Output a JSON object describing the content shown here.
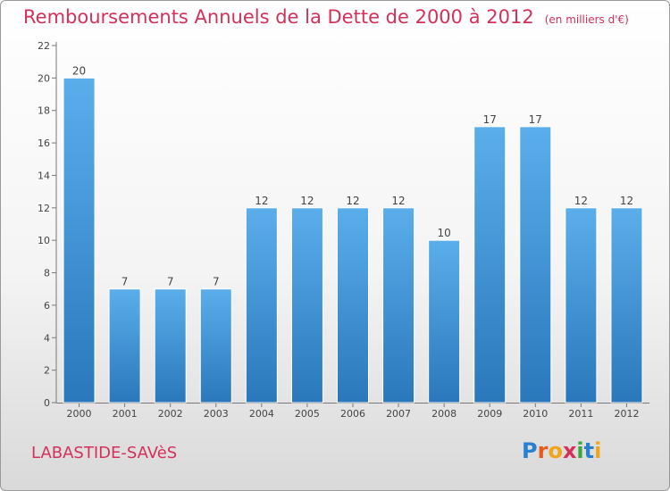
{
  "header": {
    "title": "Remboursements Annuels de la Dette de 2000 à 2012",
    "unit": "(en milliers d'€)"
  },
  "footer": {
    "commune": "LABASTIDE-SAVèS",
    "logo_letters": [
      "P",
      "r",
      "o",
      "x",
      "i",
      "t",
      "i"
    ]
  },
  "colors": {
    "title": "#d4305a",
    "bar_top": "#5aaeea",
    "bar_bottom": "#2a78bb",
    "logo": [
      "#2a7fd0",
      "#e85a1a",
      "#f0a418",
      "#d4305a",
      "#3aa838",
      "#2a7fd0",
      "#f0a418"
    ]
  },
  "chart_data": {
    "type": "bar",
    "title": "Remboursements Annuels de la Dette de 2000 à 2012",
    "unit": "(en milliers d'€)",
    "categories": [
      "2000",
      "2001",
      "2002",
      "2003",
      "2004",
      "2005",
      "2006",
      "2007",
      "2008",
      "2009",
      "2010",
      "2011",
      "2012"
    ],
    "values": [
      20,
      7,
      7,
      7,
      12,
      12,
      12,
      12,
      10,
      17,
      17,
      12,
      12
    ],
    "ylim": [
      0,
      22
    ],
    "yticks": [
      0,
      2,
      4,
      6,
      8,
      10,
      12,
      14,
      16,
      18,
      20,
      22
    ],
    "xlabel": "",
    "ylabel": "",
    "grid": false,
    "data_labels": true
  }
}
